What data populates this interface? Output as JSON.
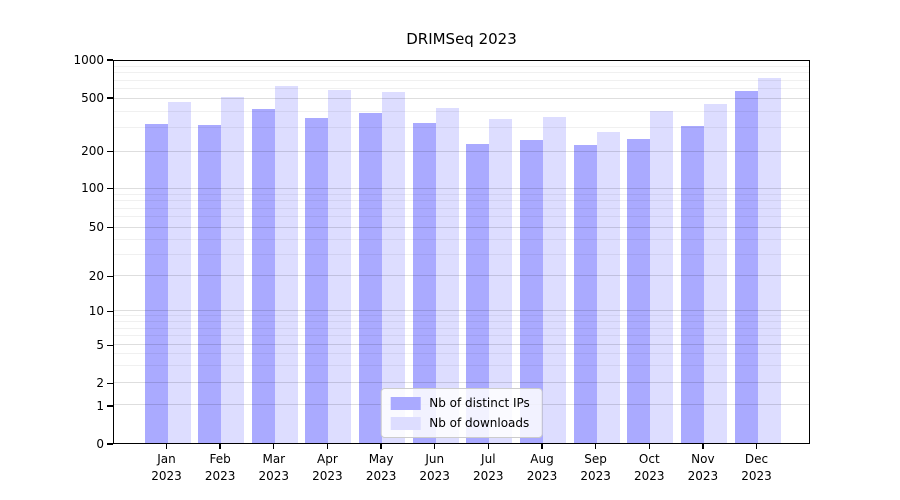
{
  "title": "DRIMSeq 2023",
  "chart_data": {
    "type": "bar",
    "title": "DRIMSeq 2023",
    "categories": [
      "Jan 2023",
      "Feb 2023",
      "Mar 2023",
      "Apr 2023",
      "May 2023",
      "Jun 2023",
      "Jul 2023",
      "Aug 2023",
      "Sep 2023",
      "Oct 2023",
      "Nov 2023",
      "Dec 2023"
    ],
    "month_labels": [
      "Jan",
      "Feb",
      "Mar",
      "Apr",
      "May",
      "Jun",
      "Jul",
      "Aug",
      "Sep",
      "Oct",
      "Nov",
      "Dec"
    ],
    "year_label": "2023",
    "series": [
      {
        "name": "Nb of distinct IPs",
        "color": "#aaaaff",
        "values": [
          325,
          320,
          420,
          357,
          390,
          331,
          228,
          244,
          225,
          252,
          313,
          578
        ]
      },
      {
        "name": "Nb of downloads",
        "color": "#ddddff",
        "values": [
          470,
          516,
          637,
          585,
          570,
          428,
          352,
          368,
          284,
          405,
          456,
          732
        ]
      }
    ],
    "y_axis": {
      "scale": "log",
      "range": [
        0,
        1000
      ],
      "grid": true,
      "ticks": [
        0,
        1,
        2,
        5,
        10,
        20,
        50,
        100,
        200,
        500,
        1000
      ]
    },
    "legend": {
      "position": "bottom-center",
      "entries": [
        "Nb of distinct IPs",
        "Nb of downloads"
      ]
    }
  },
  "colors": {
    "bar_distinct_ips": "#aaaaff",
    "bar_downloads": "#ddddff",
    "axis": "#000000",
    "legend_border": "#cccccc",
    "legend_background": "#ffffff"
  }
}
